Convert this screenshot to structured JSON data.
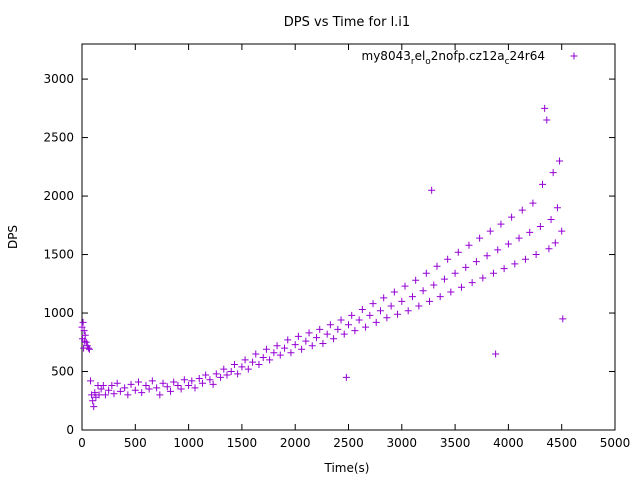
{
  "chart_data": {
    "type": "scatter",
    "title": "DPS vs Time for l.i1",
    "xlabel": "Time(s)",
    "ylabel": "DPS",
    "xlim": [
      0,
      5000
    ],
    "ylim": [
      0,
      3300
    ],
    "x_ticks": [
      0,
      500,
      1000,
      1500,
      2000,
      2500,
      3000,
      3500,
      4000,
      4500,
      5000
    ],
    "y_ticks": [
      0,
      500,
      1000,
      1500,
      2000,
      2500,
      3000
    ],
    "grid": false,
    "legend_position": "top-right",
    "marker": "plus",
    "series": [
      {
        "name": "my8043_rel_o2nofp.cz12a_c24r64",
        "legend_parts": [
          {
            "text": "my8043",
            "sub": false
          },
          {
            "text": "r",
            "sub": true
          },
          {
            "text": "el",
            "sub": false
          },
          {
            "text": "o",
            "sub": true
          },
          {
            "text": "2nofp.cz12a",
            "sub": false
          },
          {
            "text": "c",
            "sub": true
          },
          {
            "text": "24r64",
            "sub": false
          }
        ],
        "color": "#9400d3",
        "points": [
          [
            0,
            880
          ],
          [
            5,
            780
          ],
          [
            10,
            920
          ],
          [
            15,
            700
          ],
          [
            20,
            850
          ],
          [
            25,
            760
          ],
          [
            30,
            810
          ],
          [
            40,
            750
          ],
          [
            50,
            720
          ],
          [
            60,
            700
          ],
          [
            70,
            690
          ],
          [
            80,
            420
          ],
          [
            90,
            300
          ],
          [
            100,
            250
          ],
          [
            110,
            200
          ],
          [
            120,
            320
          ],
          [
            130,
            280
          ],
          [
            150,
            380
          ],
          [
            160,
            300
          ],
          [
            180,
            350
          ],
          [
            200,
            380
          ],
          [
            220,
            300
          ],
          [
            250,
            340
          ],
          [
            280,
            380
          ],
          [
            300,
            310
          ],
          [
            330,
            400
          ],
          [
            360,
            330
          ],
          [
            400,
            360
          ],
          [
            430,
            300
          ],
          [
            460,
            390
          ],
          [
            500,
            340
          ],
          [
            530,
            410
          ],
          [
            560,
            320
          ],
          [
            600,
            380
          ],
          [
            630,
            350
          ],
          [
            660,
            420
          ],
          [
            700,
            360
          ],
          [
            730,
            300
          ],
          [
            760,
            400
          ],
          [
            800,
            370
          ],
          [
            830,
            330
          ],
          [
            860,
            410
          ],
          [
            900,
            380
          ],
          [
            930,
            350
          ],
          [
            960,
            430
          ],
          [
            1000,
            380
          ],
          [
            1030,
            420
          ],
          [
            1060,
            360
          ],
          [
            1100,
            440
          ],
          [
            1130,
            400
          ],
          [
            1160,
            470
          ],
          [
            1200,
            430
          ],
          [
            1230,
            390
          ],
          [
            1260,
            480
          ],
          [
            1300,
            450
          ],
          [
            1330,
            520
          ],
          [
            1360,
            470
          ],
          [
            1400,
            500
          ],
          [
            1430,
            560
          ],
          [
            1460,
            480
          ],
          [
            1500,
            540
          ],
          [
            1530,
            600
          ],
          [
            1560,
            520
          ],
          [
            1600,
            580
          ],
          [
            1630,
            650
          ],
          [
            1660,
            560
          ],
          [
            1700,
            620
          ],
          [
            1730,
            690
          ],
          [
            1760,
            600
          ],
          [
            1800,
            660
          ],
          [
            1830,
            720
          ],
          [
            1860,
            640
          ],
          [
            1900,
            700
          ],
          [
            1930,
            770
          ],
          [
            1960,
            660
          ],
          [
            2000,
            730
          ],
          [
            2030,
            800
          ],
          [
            2060,
            690
          ],
          [
            2100,
            760
          ],
          [
            2130,
            830
          ],
          [
            2160,
            720
          ],
          [
            2200,
            790
          ],
          [
            2230,
            860
          ],
          [
            2260,
            740
          ],
          [
            2300,
            820
          ],
          [
            2330,
            900
          ],
          [
            2360,
            780
          ],
          [
            2400,
            860
          ],
          [
            2430,
            940
          ],
          [
            2460,
            820
          ],
          [
            2480,
            450
          ],
          [
            2500,
            900
          ],
          [
            2530,
            980
          ],
          [
            2560,
            850
          ],
          [
            2600,
            940
          ],
          [
            2630,
            1030
          ],
          [
            2660,
            880
          ],
          [
            2700,
            980
          ],
          [
            2730,
            1080
          ],
          [
            2760,
            920
          ],
          [
            2800,
            1020
          ],
          [
            2830,
            1130
          ],
          [
            2860,
            960
          ],
          [
            2900,
            1060
          ],
          [
            2930,
            1180
          ],
          [
            2960,
            990
          ],
          [
            3000,
            1100
          ],
          [
            3030,
            1230
          ],
          [
            3060,
            1020
          ],
          [
            3100,
            1140
          ],
          [
            3130,
            1280
          ],
          [
            3160,
            1060
          ],
          [
            3200,
            1190
          ],
          [
            3230,
            1340
          ],
          [
            3260,
            1100
          ],
          [
            3280,
            2050
          ],
          [
            3300,
            1240
          ],
          [
            3330,
            1400
          ],
          [
            3360,
            1140
          ],
          [
            3400,
            1290
          ],
          [
            3430,
            1460
          ],
          [
            3460,
            1180
          ],
          [
            3500,
            1340
          ],
          [
            3530,
            1520
          ],
          [
            3560,
            1220
          ],
          [
            3600,
            1390
          ],
          [
            3630,
            1580
          ],
          [
            3660,
            1260
          ],
          [
            3700,
            1440
          ],
          [
            3730,
            1640
          ],
          [
            3760,
            1300
          ],
          [
            3800,
            1490
          ],
          [
            3830,
            1700
          ],
          [
            3860,
            1340
          ],
          [
            3880,
            650
          ],
          [
            3900,
            1540
          ],
          [
            3930,
            1760
          ],
          [
            3960,
            1380
          ],
          [
            4000,
            1590
          ],
          [
            4030,
            1820
          ],
          [
            4060,
            1420
          ],
          [
            4100,
            1640
          ],
          [
            4130,
            1880
          ],
          [
            4160,
            1460
          ],
          [
            4200,
            1690
          ],
          [
            4230,
            1940
          ],
          [
            4260,
            1500
          ],
          [
            4300,
            1740
          ],
          [
            4320,
            2100
          ],
          [
            4340,
            2750
          ],
          [
            4360,
            2650
          ],
          [
            4380,
            1550
          ],
          [
            4400,
            1800
          ],
          [
            4420,
            2200
          ],
          [
            4440,
            1600
          ],
          [
            4460,
            1900
          ],
          [
            4480,
            2300
          ],
          [
            4500,
            1700
          ],
          [
            4510,
            950
          ]
        ]
      }
    ]
  }
}
